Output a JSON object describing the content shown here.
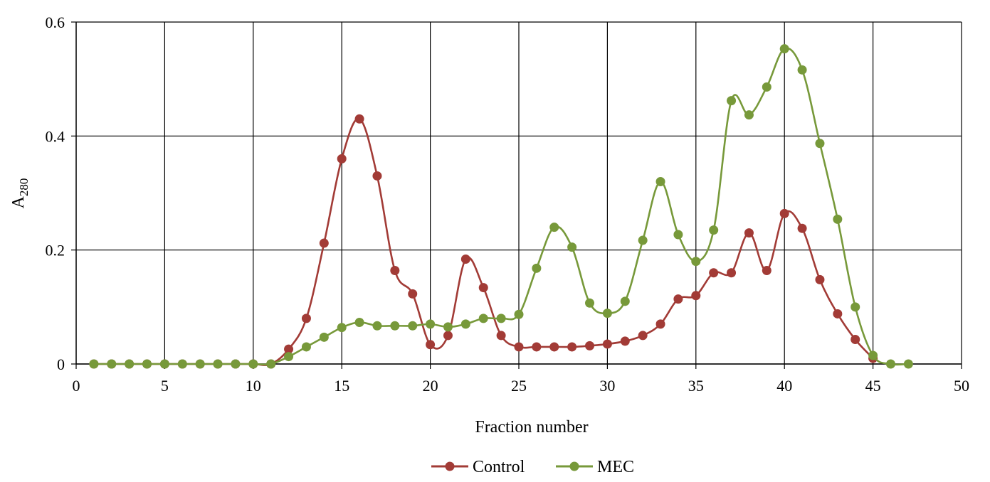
{
  "chart_data": {
    "type": "line",
    "xlabel": "Fraction number",
    "ylabel_main": "A",
    "ylabel_sub": "280",
    "xlim": [
      0,
      50
    ],
    "ylim": [
      0,
      0.6
    ],
    "x_ticks": [
      0,
      5,
      10,
      15,
      20,
      25,
      30,
      35,
      40,
      45,
      50
    ],
    "x_tick_labels": [
      "0",
      "5",
      "10",
      "15",
      "20",
      "25",
      "30",
      "35",
      "40",
      "45",
      "50"
    ],
    "y_ticks": [
      0,
      0.2,
      0.4,
      0.6
    ],
    "y_tick_labels": [
      "0",
      "0.2",
      "0.4",
      "0.6"
    ],
    "grid": true,
    "legend_position": "bottom-center",
    "series": [
      {
        "name": "Control",
        "color": "#a23b36",
        "x": [
          1,
          2,
          3,
          4,
          5,
          6,
          7,
          8,
          9,
          10,
          11,
          12,
          13,
          14,
          15,
          16,
          17,
          18,
          19,
          20,
          21,
          22,
          23,
          24,
          25,
          26,
          27,
          28,
          29,
          30,
          31,
          32,
          33,
          34,
          35,
          36,
          37,
          38,
          39,
          40,
          41,
          42,
          43,
          44,
          45
        ],
        "values": [
          0,
          0,
          0,
          0,
          0,
          0,
          0,
          0,
          0,
          0,
          0,
          0.026,
          0.08,
          0.212,
          0.36,
          0.43,
          0.33,
          0.164,
          0.123,
          0.034,
          0.05,
          0.184,
          0.134,
          0.05,
          0.03,
          0.03,
          0.03,
          0.03,
          0.032,
          0.035,
          0.04,
          0.05,
          0.07,
          0.114,
          0.12,
          0.16,
          0.16,
          0.23,
          0.164,
          0.264,
          0.238,
          0.148,
          0.088,
          0.043,
          0.01
        ]
      },
      {
        "name": "MEC",
        "color": "#77993a",
        "x": [
          1,
          2,
          3,
          4,
          5,
          6,
          7,
          8,
          9,
          10,
          11,
          12,
          13,
          14,
          15,
          16,
          17,
          18,
          19,
          20,
          21,
          22,
          23,
          24,
          25,
          26,
          27,
          28,
          29,
          30,
          31,
          32,
          33,
          34,
          35,
          36,
          37,
          38,
          39,
          40,
          41,
          42,
          43,
          44,
          45,
          46,
          47
        ],
        "values": [
          0,
          0,
          0,
          0,
          0,
          0,
          0,
          0,
          0,
          0,
          0,
          0.013,
          0.03,
          0.047,
          0.064,
          0.073,
          0.067,
          0.067,
          0.067,
          0.07,
          0.065,
          0.07,
          0.08,
          0.08,
          0.087,
          0.168,
          0.24,
          0.205,
          0.107,
          0.089,
          0.11,
          0.217,
          0.32,
          0.227,
          0.18,
          0.235,
          0.462,
          0.437,
          0.486,
          0.553,
          0.516,
          0.387,
          0.254,
          0.1,
          0.015,
          0,
          0
        ]
      }
    ]
  }
}
